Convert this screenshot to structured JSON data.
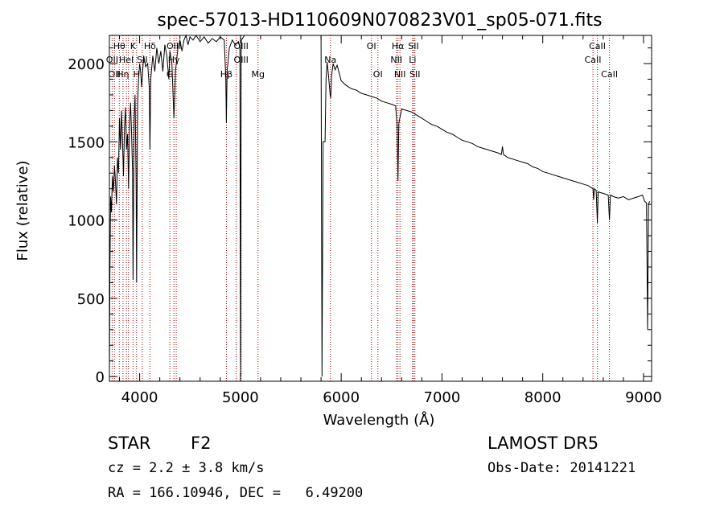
{
  "chart_data": {
    "type": "line",
    "title": "spec-57013-HD110609N070823V01_sp05-071.fits",
    "xlabel": "Wavelength (Å)",
    "ylabel": "Flux (relative)",
    "xlim": [
      3700,
      9080
    ],
    "ylim": [
      -30,
      2180
    ],
    "xticks": [
      4000,
      5000,
      6000,
      7000,
      8000,
      9000
    ],
    "yticks": [
      0,
      500,
      1000,
      1500,
      2000
    ],
    "xtick_labels": [
      "4000",
      "5000",
      "6000",
      "7000",
      "8000",
      "9000"
    ],
    "ytick_labels": [
      "0",
      "500",
      "1000",
      "1500",
      "2000"
    ],
    "grid": false,
    "series": [
      {
        "points": [
          [
            3700,
            0
          ],
          [
            3705,
            650
          ],
          [
            3712,
            1150
          ],
          [
            3720,
            1050
          ],
          [
            3730,
            1280
          ],
          [
            3740,
            1180
          ],
          [
            3750,
            1350
          ],
          [
            3760,
            1250
          ],
          [
            3770,
            1100
          ],
          [
            3780,
            1400
          ],
          [
            3790,
            1300
          ],
          [
            3800,
            1650
          ],
          [
            3810,
            1450
          ],
          [
            3820,
            1700
          ],
          [
            3830,
            1500
          ],
          [
            3840,
            1280
          ],
          [
            3850,
            1600
          ],
          [
            3860,
            1720
          ],
          [
            3870,
            1450
          ],
          [
            3880,
            1550
          ],
          [
            3890,
            1200
          ],
          [
            3900,
            1620
          ],
          [
            3910,
            1750
          ],
          [
            3920,
            1550
          ],
          [
            3930,
            1300
          ],
          [
            3935,
            620
          ],
          [
            3945,
            1650
          ],
          [
            3955,
            1800
          ],
          [
            3965,
            1250
          ],
          [
            3970,
            600
          ],
          [
            3980,
            1750
          ],
          [
            3990,
            1900
          ],
          [
            4000,
            2000
          ],
          [
            4010,
            1950
          ],
          [
            4020,
            1850
          ],
          [
            4040,
            2050
          ],
          [
            4060,
            1980
          ],
          [
            4080,
            2000
          ],
          [
            4095,
            1850
          ],
          [
            4102,
            1450
          ],
          [
            4110,
            1900
          ],
          [
            4130,
            2050
          ],
          [
            4150,
            1950
          ],
          [
            4170,
            2100
          ],
          [
            4190,
            2000
          ],
          [
            4210,
            2080
          ],
          [
            4230,
            1950
          ],
          [
            4250,
            2120
          ],
          [
            4270,
            2050
          ],
          [
            4290,
            1900
          ],
          [
            4300,
            2080
          ],
          [
            4320,
            2000
          ],
          [
            4340,
            1650
          ],
          [
            4355,
            1950
          ],
          [
            4380,
            2100
          ],
          [
            4400,
            2150
          ],
          [
            4420,
            2080
          ],
          [
            4440,
            2150
          ],
          [
            4460,
            2180
          ],
          [
            4480,
            2120
          ],
          [
            4500,
            2170
          ],
          [
            4530,
            2150
          ],
          [
            4560,
            2180
          ],
          [
            4600,
            2140
          ],
          [
            4640,
            2170
          ],
          [
            4680,
            2130
          ],
          [
            4720,
            2160
          ],
          [
            4760,
            2140
          ],
          [
            4800,
            2170
          ],
          [
            4840,
            2150
          ],
          [
            4855,
            1900
          ],
          [
            4861,
            1620
          ],
          [
            4868,
            1950
          ],
          [
            4890,
            2100
          ],
          [
            4920,
            2150
          ],
          [
            4950,
            2120
          ],
          [
            4980,
            2140
          ],
          [
            4995,
            2100
          ],
          [
            5000,
            180
          ],
          [
            5003,
            0
          ],
          [
            5007,
            2050
          ],
          [
            5010,
            2150
          ],
          [
            5040,
            2200
          ],
          [
            5800,
            2200
          ],
          [
            5810,
            0
          ],
          [
            5820,
            1500
          ],
          [
            5840,
            1500
          ],
          [
            5850,
            1900
          ],
          [
            5860,
            2010
          ],
          [
            5870,
            1950
          ],
          [
            5890,
            1800
          ],
          [
            5896,
            1780
          ],
          [
            5905,
            1920
          ],
          [
            5920,
            2000
          ],
          [
            5940,
            1960
          ],
          [
            5960,
            1990
          ],
          [
            5980,
            1940
          ],
          [
            6000,
            1890
          ],
          [
            6050,
            1860
          ],
          [
            6100,
            1840
          ],
          [
            6150,
            1830
          ],
          [
            6200,
            1810
          ],
          [
            6250,
            1800
          ],
          [
            6300,
            1790
          ],
          [
            6350,
            1780
          ],
          [
            6400,
            1760
          ],
          [
            6450,
            1750
          ],
          [
            6500,
            1740
          ],
          [
            6540,
            1730
          ],
          [
            6555,
            1600
          ],
          [
            6563,
            1250
          ],
          [
            6572,
            1620
          ],
          [
            6600,
            1710
          ],
          [
            6650,
            1700
          ],
          [
            6700,
            1690
          ],
          [
            6750,
            1670
          ],
          [
            6800,
            1650
          ],
          [
            6850,
            1630
          ],
          [
            6900,
            1610
          ],
          [
            6950,
            1600
          ],
          [
            7000,
            1580
          ],
          [
            7050,
            1560
          ],
          [
            7100,
            1550
          ],
          [
            7150,
            1530
          ],
          [
            7200,
            1510
          ],
          [
            7250,
            1500
          ],
          [
            7300,
            1490
          ],
          [
            7350,
            1470
          ],
          [
            7400,
            1460
          ],
          [
            7450,
            1450
          ],
          [
            7500,
            1440
          ],
          [
            7550,
            1430
          ],
          [
            7590,
            1420
          ],
          [
            7600,
            1470
          ],
          [
            7610,
            1420
          ],
          [
            7650,
            1400
          ],
          [
            7700,
            1390
          ],
          [
            7750,
            1380
          ],
          [
            7800,
            1370
          ],
          [
            7850,
            1360
          ],
          [
            7900,
            1340
          ],
          [
            7950,
            1330
          ],
          [
            8000,
            1310
          ],
          [
            8050,
            1300
          ],
          [
            8100,
            1290
          ],
          [
            8150,
            1280
          ],
          [
            8200,
            1270
          ],
          [
            8250,
            1260
          ],
          [
            8300,
            1250
          ],
          [
            8350,
            1240
          ],
          [
            8400,
            1230
          ],
          [
            8450,
            1220
          ],
          [
            8498,
            1200
          ],
          [
            8505,
            1130
          ],
          [
            8512,
            1200
          ],
          [
            8530,
            1190
          ],
          [
            8542,
            980
          ],
          [
            8550,
            1180
          ],
          [
            8600,
            1170
          ],
          [
            8650,
            1160
          ],
          [
            8662,
            1000
          ],
          [
            8672,
            1160
          ],
          [
            8700,
            1150
          ],
          [
            8750,
            1140
          ],
          [
            8800,
            1150
          ],
          [
            8850,
            1130
          ],
          [
            8900,
            1140
          ],
          [
            8950,
            1150
          ],
          [
            8990,
            1160
          ],
          [
            9010,
            1120
          ],
          [
            9030,
            1110
          ],
          [
            9040,
            300
          ],
          [
            9050,
            1100
          ],
          [
            9060,
            1120
          ]
        ]
      }
    ],
    "lines": [
      {
        "x": 3727,
        "labels": [
          {
            "text": "OII",
            "row": 1
          }
        ]
      },
      {
        "x": 3750,
        "labels": [
          {
            "text": "OII",
            "row": 2
          }
        ]
      },
      {
        "x": 3798,
        "labels": [
          {
            "text": "Hθ",
            "row": 0
          }
        ]
      },
      {
        "x": 3835,
        "labels": [
          {
            "text": "Hη",
            "row": 2
          }
        ]
      },
      {
        "x": 3869,
        "labels": [
          {
            "text": "HeI",
            "row": 1
          }
        ]
      },
      {
        "x": 3889,
        "labels": []
      },
      {
        "x": 3934,
        "labels": [
          {
            "text": "K",
            "row": 0
          }
        ]
      },
      {
        "x": 3970,
        "labels": [
          {
            "text": "H",
            "row": 2
          }
        ]
      },
      {
        "x": 4026,
        "labels": [
          {
            "text": "SII",
            "row": 1
          }
        ]
      },
      {
        "x": 4102,
        "labels": [
          {
            "text": "Hδ",
            "row": 0
          }
        ]
      },
      {
        "x": 4300,
        "labels": [
          {
            "text": "G",
            "row": 2
          }
        ]
      },
      {
        "x": 4340,
        "labels": [
          {
            "text": "OIII",
            "row": 0
          },
          {
            "text": "Hγ",
            "row": 1
          }
        ]
      },
      {
        "x": 4363,
        "labels": []
      },
      {
        "x": 4861,
        "labels": [
          {
            "text": "Hβ",
            "row": 2
          }
        ]
      },
      {
        "x": 4959,
        "labels": []
      },
      {
        "x": 5007,
        "labels": [
          {
            "text": "OIII",
            "row": 0
          },
          {
            "text": "OIII",
            "row": 1
          }
        ]
      },
      {
        "x": 5175,
        "labels": [
          {
            "text": "Mg",
            "row": 2
          }
        ]
      },
      {
        "x": 5893,
        "labels": [
          {
            "text": "Na",
            "row": 1
          }
        ]
      },
      {
        "x": 6300,
        "labels": [
          {
            "text": "OI",
            "row": 0
          }
        ]
      },
      {
        "x": 6364,
        "labels": [
          {
            "text": "OI",
            "row": 2
          }
        ]
      },
      {
        "x": 6548,
        "labels": [
          {
            "text": "NII",
            "row": 1
          }
        ]
      },
      {
        "x": 6563,
        "labels": [
          {
            "text": "Hα",
            "row": 0
          }
        ]
      },
      {
        "x": 6583,
        "labels": [
          {
            "text": "NII",
            "row": 2
          }
        ]
      },
      {
        "x": 6708,
        "labels": [
          {
            "text": "Li",
            "row": 1
          }
        ]
      },
      {
        "x": 6717,
        "labels": [
          {
            "text": "SII",
            "row": 0
          }
        ]
      },
      {
        "x": 6731,
        "labels": [
          {
            "text": "SII",
            "row": 2
          }
        ]
      },
      {
        "x": 8498,
        "labels": [
          {
            "text": "CaII",
            "row": 1
          }
        ]
      },
      {
        "x": 8542,
        "labels": [
          {
            "text": "CaII",
            "row": 0
          }
        ]
      },
      {
        "x": 8662,
        "labels": [
          {
            "text": "CaII",
            "row": 2
          }
        ]
      }
    ]
  },
  "info": {
    "class_label": "STAR",
    "subclass": "F2",
    "survey": "LAMOST DR5",
    "cz": "cz = 2.2 ± 3.8 km/s",
    "obs_date": "Obs-Date: 20141221",
    "coords": "RA = 166.10946, DEC =   6.49200"
  }
}
